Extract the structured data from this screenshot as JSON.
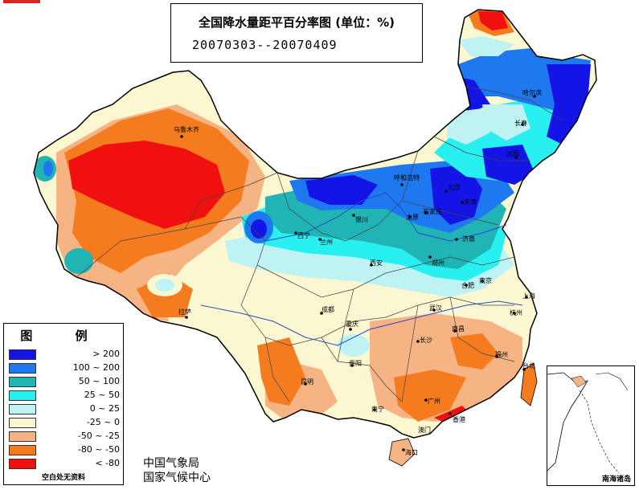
{
  "title": {
    "main": "全国降水量距平百分率图 (单位：%)",
    "period": "20070303--20070409"
  },
  "legend": {
    "title": "图 例",
    "items": [
      {
        "label": "> 200",
        "color": "#1414e6"
      },
      {
        "label": "100 ~ 200",
        "color": "#1e78f0"
      },
      {
        "label": "50 ~ 100",
        "color": "#20b4b4"
      },
      {
        "label": "25 ~ 50",
        "color": "#28f0f0"
      },
      {
        "label": "0 ~ 25",
        "color": "#bff2f2"
      },
      {
        "label": "-25 ~ 0",
        "color": "#fbf7d0"
      },
      {
        "label": "-50 ~ -25",
        "color": "#f6b383"
      },
      {
        "label": "-80 ~ -50",
        "color": "#f47c1e"
      },
      {
        "label": "< -80",
        "color": "#f01010"
      }
    ],
    "note": "空白处无资料"
  },
  "agency": {
    "line1": "中国气象局",
    "line2": "国家气候中心"
  },
  "inset": {
    "label": "南海诸岛"
  },
  "cities": [
    "乌鲁木齐",
    "拉萨",
    "西宁",
    "兰州",
    "银川",
    "呼和浩特",
    "北京",
    "天津",
    "石家庄",
    "太原",
    "济南",
    "郑州",
    "西安",
    "成都",
    "重庆",
    "贵阳",
    "昆明",
    "南宁",
    "广州",
    "香港",
    "海口",
    "长沙",
    "武汉",
    "南昌",
    "福州",
    "台北",
    "杭州",
    "合肥",
    "南京",
    "上海",
    "沈阳",
    "长春",
    "哈尔滨",
    "澳门"
  ]
}
